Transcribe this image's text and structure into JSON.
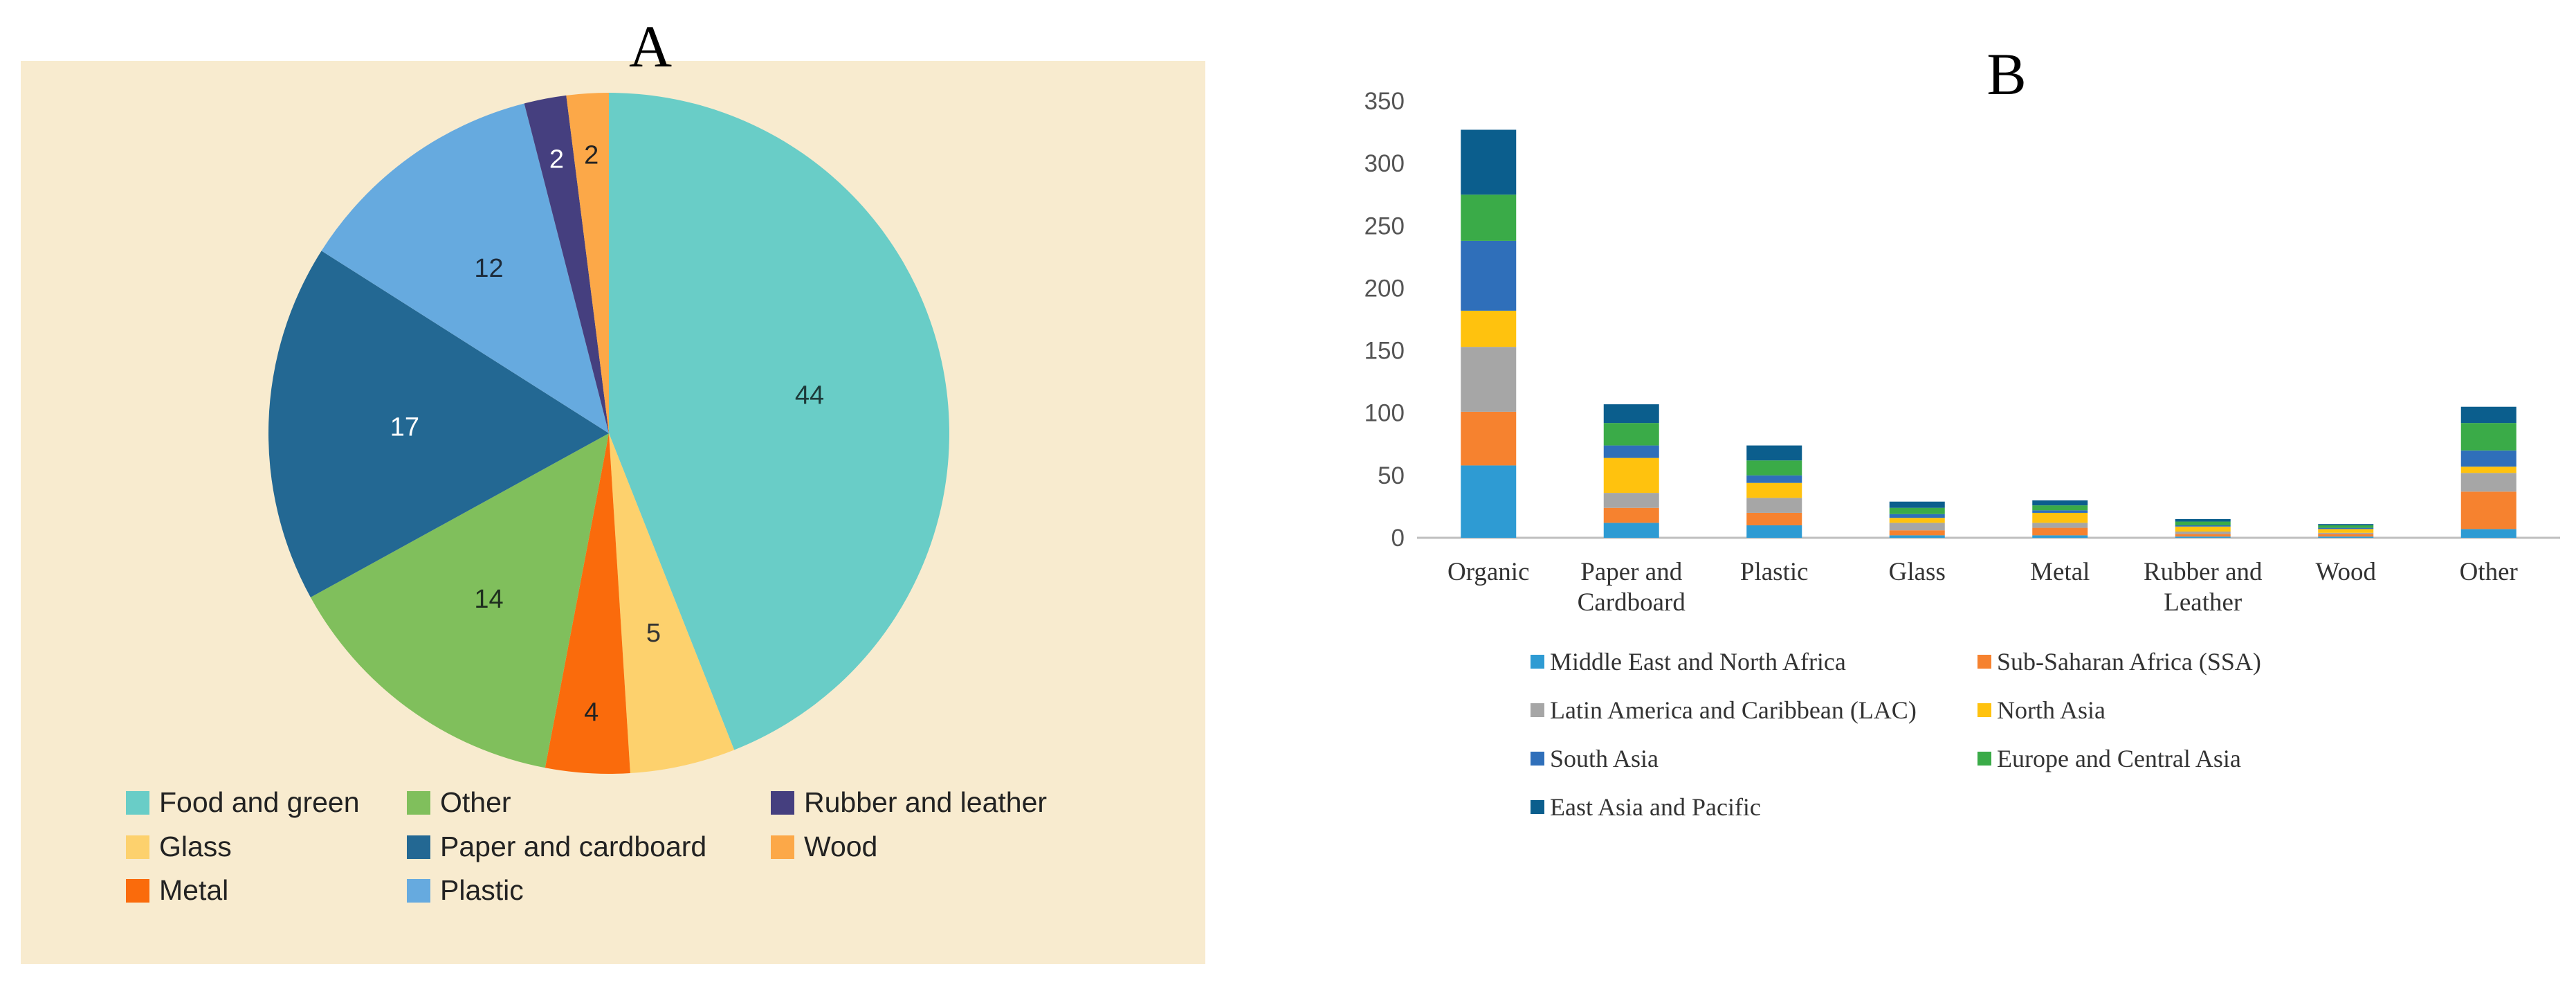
{
  "panels": {
    "a_label": "A",
    "b_label": "B"
  },
  "chart_data": [
    {
      "type": "pie",
      "panel": "A",
      "background_color": "#f8ebcf",
      "slices": [
        {
          "label": "Food and green",
          "value": 44,
          "color": "#69cdc7",
          "text_color": "#1d3a3a"
        },
        {
          "label": "Glass",
          "value": 5,
          "color": "#fdd16d",
          "text_color": "#333333"
        },
        {
          "label": "Metal",
          "value": 4,
          "color": "#fa6b0c",
          "text_color": "#222222"
        },
        {
          "label": "Other",
          "value": 14,
          "color": "#80bf5c",
          "text_color": "#1e2e1e"
        },
        {
          "label": "Paper and cardboard",
          "value": 17,
          "color": "#236893",
          "text_color": "#ffffff"
        },
        {
          "label": "Plastic",
          "value": 12,
          "color": "#66aadf",
          "text_color": "#1d2b3a"
        },
        {
          "label": "Rubber and leather",
          "value": 2,
          "color": "#453f7f",
          "text_color": "#ffffff"
        },
        {
          "label": "Wood",
          "value": 2,
          "color": "#fca848",
          "text_color": "#222222"
        }
      ],
      "legend_order": [
        "Food and green",
        "Other",
        "Rubber and leather",
        "Glass",
        "Paper and cardboard",
        "Wood",
        "Metal",
        "Plastic"
      ],
      "legend_placement": "bottom"
    },
    {
      "type": "bar",
      "stacked": true,
      "panel": "B",
      "categories": [
        [
          "Organic"
        ],
        [
          "Paper and",
          "Cardboard"
        ],
        [
          "Plastic"
        ],
        [
          "Glass"
        ],
        [
          "Metal"
        ],
        [
          "Rubber and",
          "Leather"
        ],
        [
          "Wood"
        ],
        [
          "Other"
        ]
      ],
      "ylim": [
        0,
        350
      ],
      "yticks": [
        0,
        50,
        100,
        150,
        200,
        250,
        300,
        350
      ],
      "grid": false,
      "legend_placement": "bottom",
      "series": [
        {
          "name": "Middle East and North Africa",
          "color": "#2e9bd3",
          "values": [
            58,
            12,
            10,
            2,
            2,
            1,
            1,
            7
          ]
        },
        {
          "name": "Sub-Saharan Africa (SSA)",
          "color": "#f6822f",
          "values": [
            43,
            12,
            10,
            4,
            6,
            2,
            2,
            30
          ]
        },
        {
          "name": "Latin America and Caribbean (LAC)",
          "color": "#a6a6a6",
          "values": [
            52,
            12,
            12,
            6,
            4,
            2,
            1,
            15
          ]
        },
        {
          "name": "North Asia",
          "color": "#ffc20e",
          "values": [
            29,
            28,
            12,
            4,
            8,
            4,
            3,
            5
          ]
        },
        {
          "name": "South Asia",
          "color": "#2f6fba",
          "values": [
            56,
            10,
            6,
            3,
            2,
            1,
            1,
            13
          ]
        },
        {
          "name": "Europe and Central Asia",
          "color": "#3aab48",
          "values": [
            37,
            18,
            12,
            5,
            4,
            3,
            2,
            22
          ]
        },
        {
          "name": "East Asia and Pacific",
          "color": "#0b5e8d",
          "values": [
            52,
            15,
            12,
            5,
            4,
            2,
            1,
            13
          ]
        }
      ]
    }
  ]
}
